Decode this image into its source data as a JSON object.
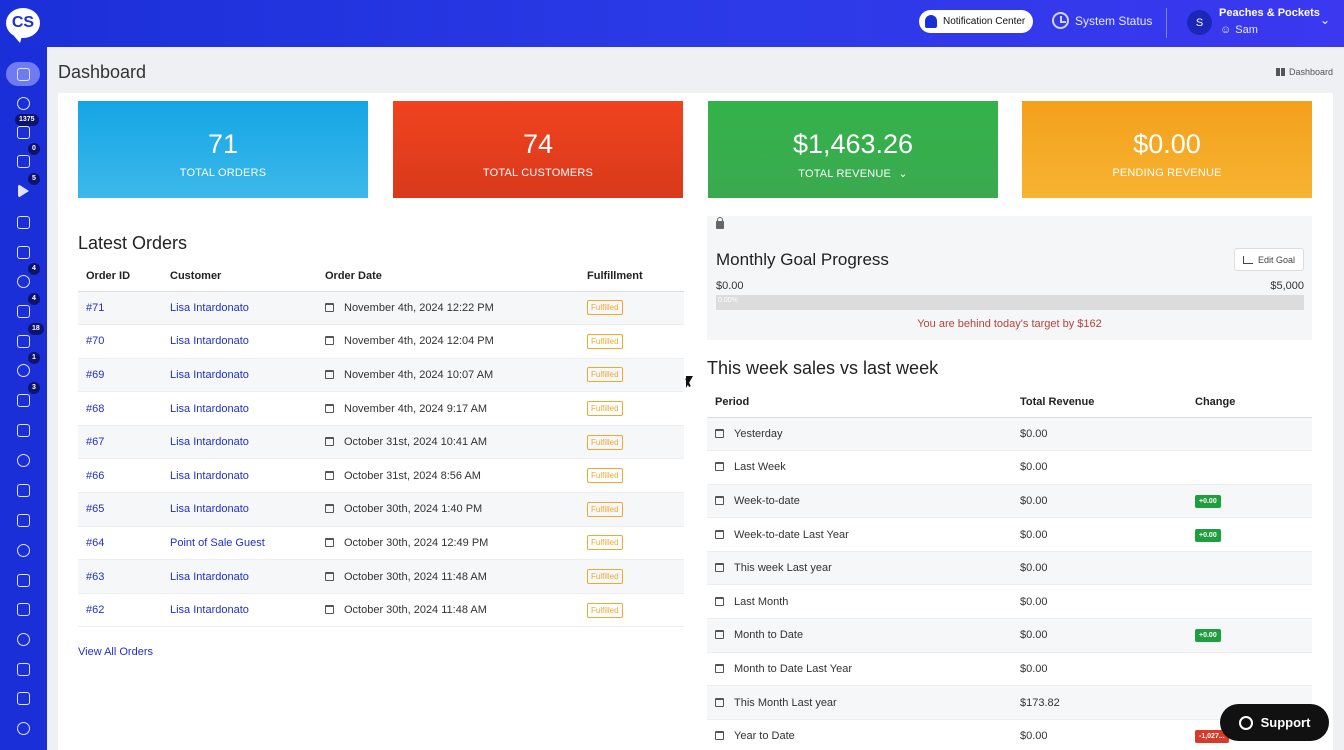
{
  "topbar": {
    "logo": "CS",
    "notification_center": "Notification Center",
    "system_status": "System Status",
    "avatar_initial": "S",
    "company": "Peaches & Pockets",
    "user": "Sam"
  },
  "sidebar": {
    "items": [
      {
        "icon": "home-icon",
        "badge": ""
      },
      {
        "icon": "headset-icon",
        "badge": ""
      },
      {
        "icon": "inbox-icon",
        "badge": "1375"
      },
      {
        "icon": "rss-icon",
        "badge": "0"
      },
      {
        "icon": "play-icon",
        "badge": "5"
      },
      {
        "icon": "chat-icon",
        "badge": ""
      },
      {
        "icon": "magic-icon",
        "badge": ""
      },
      {
        "icon": "box-icon",
        "badge": "4"
      },
      {
        "icon": "scan-icon",
        "badge": "4"
      },
      {
        "icon": "return-icon",
        "badge": "18"
      },
      {
        "icon": "rocket-icon",
        "badge": "1"
      },
      {
        "icon": "ticket-icon",
        "badge": "3"
      },
      {
        "icon": "users-icon",
        "badge": ""
      },
      {
        "icon": "monitor-icon",
        "badge": ""
      },
      {
        "icon": "cube-icon",
        "badge": ""
      },
      {
        "icon": "gear-icon",
        "badge": ""
      },
      {
        "icon": "share-icon",
        "badge": ""
      },
      {
        "icon": "mobile-icon",
        "badge": ""
      },
      {
        "icon": "bar-chart-icon",
        "badge": ""
      },
      {
        "icon": "hourglass-icon",
        "badge": ""
      },
      {
        "icon": "cart-icon",
        "badge": ""
      },
      {
        "icon": "book-icon",
        "badge": ""
      },
      {
        "icon": "store-icon",
        "badge": ""
      }
    ]
  },
  "page": {
    "title": "Dashboard",
    "breadcrumb": "Dashboard"
  },
  "stats": [
    {
      "value": "71",
      "label": "TOTAL ORDERS",
      "color": "#14a6e6"
    },
    {
      "value": "74",
      "label": "TOTAL CUSTOMERS",
      "color": "#f0431e"
    },
    {
      "value": "$1,463.26",
      "label": "TOTAL REVENUE",
      "color": "#34b24a"
    },
    {
      "value": "$0.00",
      "label": "PENDING REVENUE",
      "color": "#f4a01c"
    }
  ],
  "orders": {
    "title": "Latest Orders",
    "headers": [
      "Order ID",
      "Customer",
      "Order Date",
      "Fulfillment"
    ],
    "rows": [
      {
        "id": "#71",
        "customer": "Lisa Intardonato",
        "date": "November 4th, 2024 12:22 PM",
        "status": "Fulfilled"
      },
      {
        "id": "#70",
        "customer": "Lisa Intardonato",
        "date": "November 4th, 2024 12:04 PM",
        "status": "Fulfilled"
      },
      {
        "id": "#69",
        "customer": "Lisa Intardonato",
        "date": "November 4th, 2024 10:07 AM",
        "status": "Fulfilled"
      },
      {
        "id": "#68",
        "customer": "Lisa Intardonato",
        "date": "November 4th, 2024 9:17 AM",
        "status": "Fulfilled"
      },
      {
        "id": "#67",
        "customer": "Lisa Intardonato",
        "date": "October 31st, 2024 10:41 AM",
        "status": "Fulfilled"
      },
      {
        "id": "#66",
        "customer": "Lisa Intardonato",
        "date": "October 31st, 2024 8:56 AM",
        "status": "Fulfilled"
      },
      {
        "id": "#65",
        "customer": "Lisa Intardonato",
        "date": "October 30th, 2024 1:40 PM",
        "status": "Fulfilled"
      },
      {
        "id": "#64",
        "customer": "Point of Sale Guest",
        "date": "October 30th, 2024 12:49 PM",
        "status": "Fulfilled"
      },
      {
        "id": "#63",
        "customer": "Lisa Intardonato",
        "date": "October 30th, 2024 11:48 AM",
        "status": "Fulfilled"
      },
      {
        "id": "#62",
        "customer": "Lisa Intardonato",
        "date": "October 30th, 2024 11:48 AM",
        "status": "Fulfilled"
      }
    ],
    "view_all": "View All Orders"
  },
  "goal": {
    "title": "Monthly Goal Progress",
    "edit_label": "Edit Goal",
    "min": "$0.00",
    "max": "$5,000",
    "progress_label": "0.00%",
    "progress": 0,
    "message": "You are behind today's target by $162"
  },
  "sales": {
    "title": "This week sales vs last week",
    "headers": [
      "Period",
      "Total Revenue",
      "Change"
    ],
    "rows": [
      {
        "period": "Yesterday",
        "revenue": "$0.00",
        "change": "",
        "trend": ""
      },
      {
        "period": "Last Week",
        "revenue": "$0.00",
        "change": "",
        "trend": ""
      },
      {
        "period": "Week-to-date",
        "revenue": "$0.00",
        "change": "+0.00",
        "trend": "pos"
      },
      {
        "period": "Week-to-date Last Year",
        "revenue": "$0.00",
        "change": "+0.00",
        "trend": "pos"
      },
      {
        "period": "This week Last year",
        "revenue": "$0.00",
        "change": "",
        "trend": ""
      },
      {
        "period": "Last Month",
        "revenue": "$0.00",
        "change": "",
        "trend": ""
      },
      {
        "period": "Month to Date",
        "revenue": "$0.00",
        "change": "+0.00",
        "trend": "pos"
      },
      {
        "period": "Month to Date Last Year",
        "revenue": "$0.00",
        "change": "",
        "trend": ""
      },
      {
        "period": "This Month Last year",
        "revenue": "$173.82",
        "change": "",
        "trend": ""
      },
      {
        "period": "Year to Date",
        "revenue": "$0.00",
        "change": "-1,027...",
        "trend": "neg"
      }
    ]
  },
  "support": {
    "label": "Support"
  }
}
